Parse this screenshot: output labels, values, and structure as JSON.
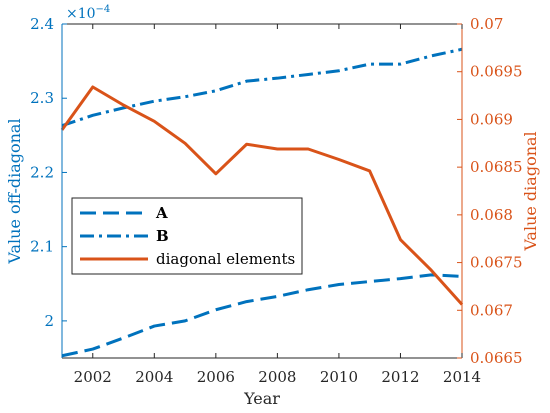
{
  "chart_data": {
    "type": "line",
    "xlabel": "Year",
    "ylabel_left": "Value off-diagonal",
    "ylabel_right": "Value diagonal",
    "left_exponent_label": "×10",
    "left_exponent_power": "−4",
    "xlim": [
      2001,
      2014
    ],
    "ylim_left": [
      1.95,
      2.4
    ],
    "ylim_right": [
      0.0665,
      0.07
    ],
    "x_ticks": [
      2002,
      2004,
      2006,
      2008,
      2010,
      2012,
      2014
    ],
    "x_tick_labels": [
      "2002",
      "2004",
      "2006",
      "2008",
      "2010",
      "2012",
      "2014"
    ],
    "y_left_ticks": [
      2.0,
      2.1,
      2.2,
      2.3,
      2.4
    ],
    "y_left_tick_labels": [
      "2",
      "2.1",
      "2.2",
      "2.3",
      "2.4"
    ],
    "y_right_ticks": [
      0.0665,
      0.067,
      0.0675,
      0.068,
      0.0685,
      0.069,
      0.0695,
      0.07
    ],
    "y_right_tick_labels": [
      "0.0665",
      "0.067",
      "0.0675",
      "0.068",
      "0.0685",
      "0.069",
      "0.0695",
      "0.07"
    ],
    "grid": false,
    "legend_position": "middle-left",
    "colors": {
      "left_axis": "#0072BD",
      "right_axis": "#D95319",
      "series_A": "#0072BD",
      "series_B": "#0072BD",
      "series_diag": "#D95319"
    },
    "x": [
      2001,
      2002,
      2003,
      2004,
      2005,
      2006,
      2007,
      2008,
      2009,
      2010,
      2011,
      2012,
      2013,
      2014
    ],
    "series": [
      {
        "name": "A",
        "axis": "left",
        "dash": "dashed",
        "values": [
          1.953,
          1.962,
          1.977,
          1.993,
          2.0,
          2.015,
          2.026,
          2.033,
          2.042,
          2.049,
          2.053,
          2.057,
          2.062,
          2.06
        ]
      },
      {
        "name": "B",
        "axis": "left",
        "dash": "dashdot",
        "values": [
          2.263,
          2.277,
          2.287,
          2.296,
          2.302,
          2.31,
          2.323,
          2.327,
          2.332,
          2.337,
          2.346,
          2.346,
          2.357,
          2.366
        ]
      },
      {
        "name": "diagonal elements",
        "axis": "right",
        "dash": "solid",
        "values": [
          0.06889,
          0.06934,
          0.06915,
          0.06898,
          0.06875,
          0.06843,
          0.06874,
          0.06869,
          0.06869,
          0.06858,
          0.06846,
          0.06774,
          0.06742,
          0.06706
        ]
      }
    ]
  }
}
